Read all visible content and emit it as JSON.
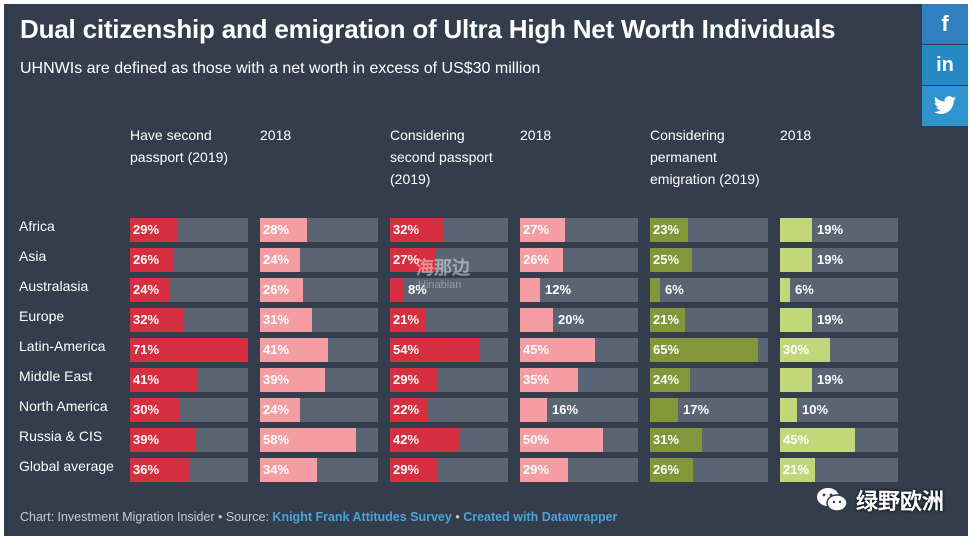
{
  "title": "Dual citizenship and emigration of Ultra High Net Worth Individuals",
  "subtitle": "UHNWIs are defined as those with a net worth in excess of US$30 million",
  "share": {
    "facebook": "f",
    "linkedin": "in",
    "twitter": "twitter-icon"
  },
  "footer": {
    "prefix": "Chart: Investment Migration Insider • Source:",
    "source_link": "Knight Frank Attitudes Survey",
    "separator": "•",
    "created_link": "Created with Datawrapper"
  },
  "watermark": {
    "text": "海那边",
    "sub": "Hinabian"
  },
  "wechat": {
    "label": "绿野欧洲"
  },
  "colors": {
    "background": "#333d4c",
    "track": "#5b6473",
    "red": "#d62f3f",
    "pink": "#f49ea4",
    "olive": "#84963a",
    "lime": "#c2d77a"
  },
  "chart_data": {
    "type": "table",
    "rows": [
      "Africa",
      "Asia",
      "Australasia",
      "Europe",
      "Latin-America",
      "Middle East",
      "North America",
      "Russia & CIS",
      "Global average"
    ],
    "columns": [
      {
        "header": "Have second passport (2019)",
        "color": "#d62f3f",
        "values": [
          29,
          26,
          24,
          32,
          71,
          41,
          30,
          39,
          36
        ]
      },
      {
        "header": "2018",
        "color": "#f49ea4",
        "values": [
          28,
          24,
          26,
          31,
          41,
          39,
          24,
          58,
          34
        ]
      },
      {
        "header": "Considering second passport (2019)",
        "color": "#d62f3f",
        "values": [
          32,
          27,
          8,
          21,
          54,
          29,
          22,
          42,
          29
        ]
      },
      {
        "header": "2018",
        "color": "#f49ea4",
        "values": [
          27,
          26,
          12,
          20,
          45,
          35,
          16,
          50,
          29
        ]
      },
      {
        "header": "Considering permanent emigration (2019)",
        "color": "#84963a",
        "values": [
          23,
          25,
          6,
          21,
          65,
          24,
          17,
          31,
          26
        ]
      },
      {
        "header": "2018",
        "color": "#c2d77a",
        "values": [
          19,
          19,
          6,
          19,
          30,
          19,
          10,
          45,
          21
        ]
      }
    ],
    "value_suffix": "%",
    "scale_max": 71
  }
}
